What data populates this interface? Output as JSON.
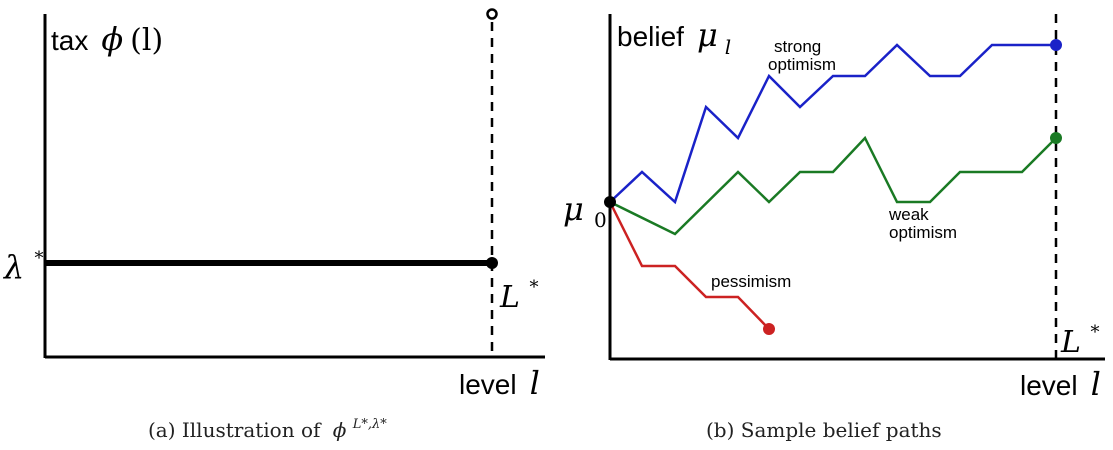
{
  "panel_a": {
    "y_label_word": "tax",
    "y_label_func": "ϕ",
    "y_label_arg": "(l)",
    "y_level_symbol": "λ",
    "y_level_sup": "*",
    "x_mark_symbol": "L",
    "x_mark_sup": "*",
    "x_label_word": "level",
    "x_label_var": "l",
    "caption_prefix": "(a) Illustration of",
    "caption_symbol": "ϕ",
    "caption_sup": "L*,λ*",
    "colors": {
      "axis": "#000000",
      "tax_line": "#000000"
    }
  },
  "panel_b": {
    "y_label_word": "belief",
    "y_label_symbol": "μ",
    "y_label_sub": "l",
    "start_symbol": "μ",
    "start_sub": "0",
    "x_mark_symbol": "L",
    "x_mark_sup": "*",
    "x_label_word": "level",
    "x_label_var": "l",
    "caption": "(b) Sample belief paths",
    "paths": [
      {
        "label_line1": "strong",
        "label_line2": "optimism",
        "color": "#1a22c8"
      },
      {
        "label_line1": "weak",
        "label_line2": "optimism",
        "color": "#1a7a24"
      },
      {
        "label_line1": "pessimism",
        "label_line2": "",
        "color": "#cc2222"
      }
    ],
    "colors": {
      "axis": "#000000",
      "start_point": "#000000"
    }
  }
}
